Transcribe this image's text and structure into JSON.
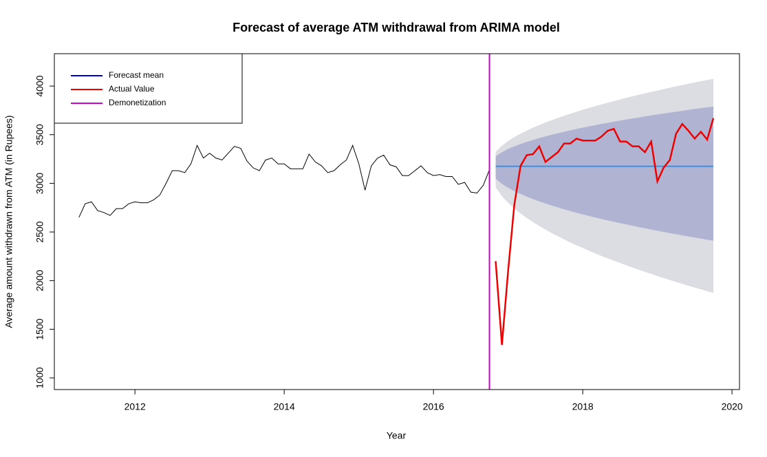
{
  "chart_data": {
    "type": "line",
    "title": "Forecast of average ATM withdrawal from ARIMA model",
    "x_label": "Year",
    "y_label": "Average amount withdrawn from ATM (in Rupees)",
    "xlim": [
      2010.92,
      2020.1
    ],
    "ylim": [
      880,
      4333
    ],
    "xticks": [
      2012,
      2014,
      2016,
      2018,
      2020
    ],
    "yticks": [
      1000,
      1500,
      2000,
      2500,
      3000,
      3500,
      4000
    ],
    "legend": "topleft",
    "history": {
      "color": "#000000",
      "x": [
        2011.25,
        2011.333,
        2011.417,
        2011.5,
        2011.583,
        2011.667,
        2011.75,
        2011.833,
        2011.917,
        2012,
        2012.083,
        2012.167,
        2012.25,
        2012.333,
        2012.417,
        2012.5,
        2012.583,
        2012.667,
        2012.75,
        2012.833,
        2012.917,
        2013,
        2013.083,
        2013.167,
        2013.25,
        2013.333,
        2013.417,
        2013.5,
        2013.583,
        2013.667,
        2013.75,
        2013.833,
        2013.917,
        2014,
        2014.083,
        2014.167,
        2014.25,
        2014.333,
        2014.417,
        2014.5,
        2014.583,
        2014.667,
        2014.75,
        2014.833,
        2014.917,
        2015,
        2015.083,
        2015.167,
        2015.25,
        2015.333,
        2015.417,
        2015.5,
        2015.583,
        2015.667,
        2015.75,
        2015.833,
        2015.917,
        2016,
        2016.083,
        2016.167,
        2016.25,
        2016.333,
        2016.417,
        2016.5,
        2016.583,
        2016.667,
        2016.75
      ],
      "values": [
        2650,
        2790,
        2810,
        2720,
        2700,
        2670,
        2740,
        2740,
        2790,
        2810,
        2800,
        2800,
        2830,
        2880,
        3000,
        3130,
        3130,
        3110,
        3200,
        3390,
        3260,
        3310,
        3260,
        3240,
        3310,
        3380,
        3360,
        3230,
        3160,
        3130,
        3240,
        3260,
        3200,
        3200,
        3150,
        3150,
        3150,
        3300,
        3220,
        3180,
        3110,
        3130,
        3190,
        3240,
        3390,
        3200,
        2930,
        3180,
        3260,
        3290,
        3190,
        3170,
        3080,
        3080,
        3130,
        3180,
        3110,
        3080,
        3090,
        3070,
        3070,
        2990,
        3010,
        2910,
        2900,
        2980,
        3140
      ]
    },
    "forecast": {
      "name": "Forecast mean",
      "legend_color": "#0000cd",
      "color": "#3a8fe0",
      "x": [
        2016.833,
        2016.917,
        2017,
        2017.083,
        2017.167,
        2017.25,
        2017.333,
        2017.417,
        2017.5,
        2017.583,
        2017.667,
        2017.75,
        2017.833,
        2017.917,
        2018,
        2018.083,
        2018.167,
        2018.25,
        2018.333,
        2018.417,
        2018.5,
        2018.583,
        2018.667,
        2018.75,
        2018.833,
        2018.917,
        2019,
        2019.083,
        2019.167,
        2019.25,
        2019.333,
        2019.417,
        2019.5,
        2019.583,
        2019.667,
        2019.75
      ],
      "values": [
        3175,
        3175,
        3175,
        3175,
        3175,
        3175,
        3175,
        3175,
        3175,
        3175,
        3175,
        3175,
        3175,
        3175,
        3175,
        3175,
        3175,
        3175,
        3175,
        3175,
        3175,
        3175,
        3175,
        3175,
        3175,
        3175,
        3175,
        3175,
        3175,
        3175,
        3175,
        3175,
        3175,
        3175,
        3175,
        3175
      ]
    },
    "intervals": [
      {
        "color": "#dcdce3",
        "lower": [
          2958,
          2868,
          2799,
          2741,
          2690,
          2644,
          2601,
          2561,
          2524,
          2489,
          2455,
          2423,
          2392,
          2363,
          2335,
          2307,
          2280,
          2254,
          2229,
          2205,
          2181,
          2157,
          2134,
          2112,
          2090,
          2069,
          2047,
          2027,
          2006,
          1986,
          1967,
          1947,
          1928,
          1910,
          1891,
          1873
        ],
        "upper": [
          3325,
          3387,
          3435,
          3475,
          3510,
          3542,
          3572,
          3599,
          3625,
          3649,
          3673,
          3695,
          3716,
          3736,
          3756,
          3775,
          3793,
          3811,
          3829,
          3846,
          3862,
          3879,
          3894,
          3910,
          3925,
          3940,
          3954,
          3969,
          3983,
          3997,
          4010,
          4024,
          4037,
          4050,
          4062,
          4075
        ]
      },
      {
        "color": "#b0b4d2",
        "lower": [
          3048,
          2995,
          2954,
          2920,
          2890,
          2863,
          2838,
          2814,
          2793,
          2772,
          2752,
          2733,
          2715,
          2698,
          2681,
          2665,
          2649,
          2634,
          2619,
          2605,
          2591,
          2577,
          2564,
          2550,
          2538,
          2525,
          2513,
          2500,
          2488,
          2477,
          2465,
          2454,
          2443,
          2432,
          2421,
          2410
        ],
        "upper": [
          3278,
          3320,
          3353,
          3380,
          3404,
          3426,
          3446,
          3465,
          3483,
          3499,
          3515,
          3530,
          3545,
          3559,
          3572,
          3585,
          3598,
          3610,
          3622,
          3633,
          3645,
          3656,
          3667,
          3677,
          3688,
          3698,
          3708,
          3717,
          3727,
          3736,
          3746,
          3755,
          3764,
          3773,
          3781,
          3790
        ]
      }
    ],
    "actual": {
      "name": "Actual Value",
      "color": "#ee0000",
      "values": [
        2200,
        1340,
        2100,
        2780,
        3180,
        3290,
        3300,
        3380,
        3220,
        3270,
        3320,
        3410,
        3410,
        3460,
        3440,
        3440,
        3440,
        3480,
        3540,
        3560,
        3430,
        3430,
        3380,
        3380,
        3320,
        3430,
        3020,
        3160,
        3240,
        3510,
        3610,
        3540,
        3460,
        3530,
        3450,
        3670
      ]
    },
    "event": {
      "name": "Demonetization",
      "color": "#cc00cc",
      "x": 2016.75
    }
  }
}
